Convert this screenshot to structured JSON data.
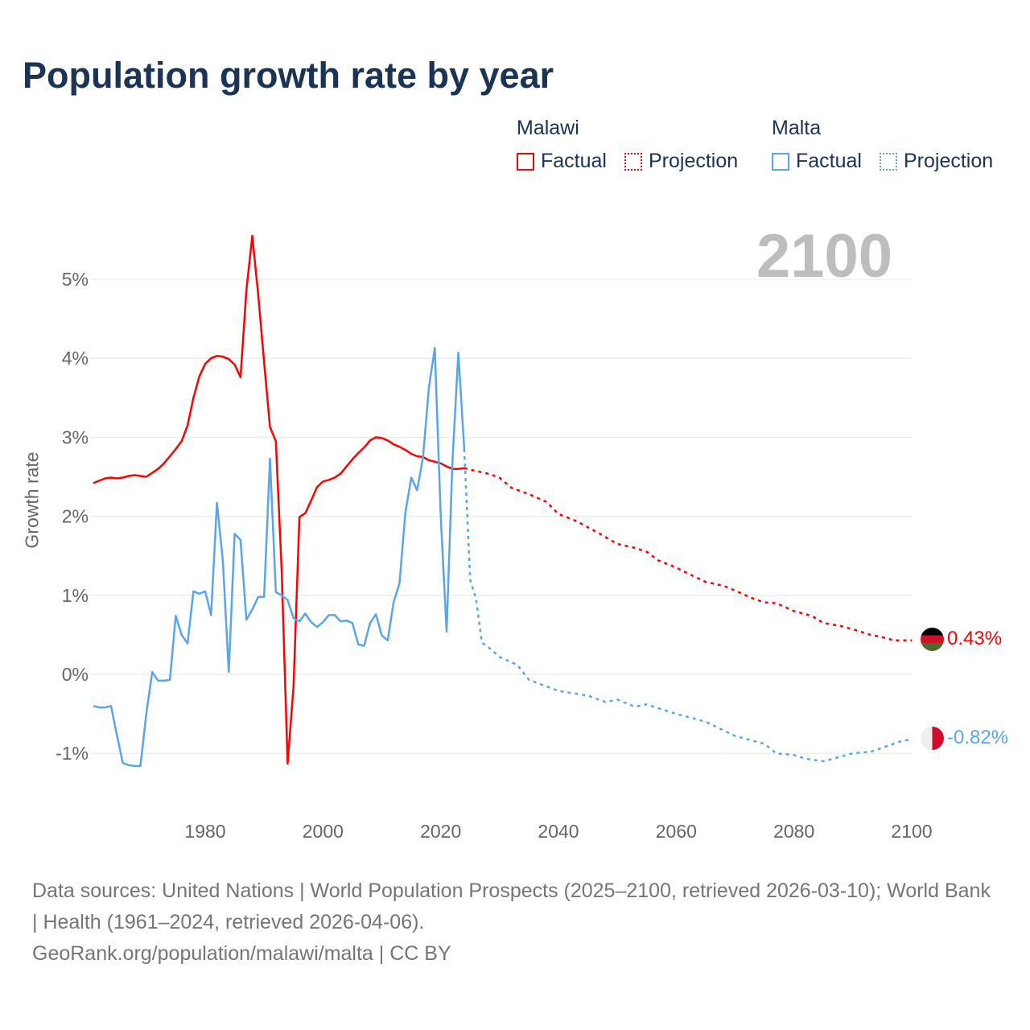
{
  "title": "Population growth rate by year",
  "legend": {
    "groups": [
      {
        "name": "Malawi",
        "factual": "Factual",
        "projection": "Projection",
        "color": "#ff0000"
      },
      {
        "name": "Malta",
        "factual": "Factual",
        "projection": "Projection",
        "color": "#5aa5ea"
      }
    ]
  },
  "current_year": "2100",
  "end_labels": {
    "malawi": "0.43%",
    "malta": "-0.82%"
  },
  "footer": {
    "sources": "Data sources: United Nations | World Population Prospects (2025–2100, retrieved 2026-03-10); World Bank | Health (1961–2024, retrieved 2026-04-06).",
    "credit": "GeoRank.org/population/malawi/malta | CC BY"
  },
  "chart_data": {
    "type": "line",
    "ylabel": "Growth rate",
    "xlim": [
      1961,
      2100
    ],
    "ylim": [
      -1.6,
      5.9
    ],
    "xticks": [
      {
        "v": 1980,
        "label": "1980"
      },
      {
        "v": 2000,
        "label": "2000"
      },
      {
        "v": 2020,
        "label": "2020"
      },
      {
        "v": 2040,
        "label": "2040"
      },
      {
        "v": 2060,
        "label": "2060"
      },
      {
        "v": 2080,
        "label": "2080"
      },
      {
        "v": 2100,
        "label": "2100"
      }
    ],
    "yticks": [
      {
        "v": -1,
        "label": "-1%"
      },
      {
        "v": 0,
        "label": "0%"
      },
      {
        "v": 1,
        "label": "1%"
      },
      {
        "v": 2,
        "label": "2%"
      },
      {
        "v": 3,
        "label": "3%"
      },
      {
        "v": 4,
        "label": "4%"
      },
      {
        "v": 5,
        "label": "5%"
      }
    ],
    "grid": true,
    "series": [
      {
        "name": "Malawi Factual",
        "color": "#ff0000",
        "dashed": false,
        "points": [
          [
            1961,
            2.42
          ],
          [
            1962,
            2.45
          ],
          [
            1963,
            2.48
          ],
          [
            1964,
            2.49
          ],
          [
            1965,
            2.48
          ],
          [
            1966,
            2.49
          ],
          [
            1967,
            2.51
          ],
          [
            1968,
            2.52
          ],
          [
            1969,
            2.51
          ],
          [
            1970,
            2.5
          ],
          [
            1971,
            2.55
          ],
          [
            1972,
            2.6
          ],
          [
            1973,
            2.67
          ],
          [
            1974,
            2.76
          ],
          [
            1975,
            2.85
          ],
          [
            1976,
            2.95
          ],
          [
            1977,
            3.15
          ],
          [
            1978,
            3.5
          ],
          [
            1979,
            3.77
          ],
          [
            1980,
            3.93
          ],
          [
            1981,
            4.0
          ],
          [
            1982,
            4.03
          ],
          [
            1983,
            4.02
          ],
          [
            1984,
            3.99
          ],
          [
            1985,
            3.92
          ],
          [
            1986,
            3.76
          ],
          [
            1987,
            4.86
          ],
          [
            1988,
            5.55
          ],
          [
            1989,
            4.8
          ],
          [
            1990,
            3.95
          ],
          [
            1991,
            3.13
          ],
          [
            1992,
            2.95
          ],
          [
            1993,
            1.3
          ],
          [
            1994,
            -1.13
          ],
          [
            1995,
            -0.15
          ],
          [
            1996,
            1.99
          ],
          [
            1997,
            2.04
          ],
          [
            1998,
            2.2
          ],
          [
            1999,
            2.37
          ],
          [
            2000,
            2.44
          ],
          [
            2001,
            2.46
          ],
          [
            2002,
            2.49
          ],
          [
            2003,
            2.54
          ],
          [
            2004,
            2.63
          ],
          [
            2005,
            2.72
          ],
          [
            2006,
            2.8
          ],
          [
            2007,
            2.87
          ],
          [
            2008,
            2.96
          ],
          [
            2009,
            3.0
          ],
          [
            2010,
            2.99
          ],
          [
            2011,
            2.96
          ],
          [
            2012,
            2.91
          ],
          [
            2013,
            2.88
          ],
          [
            2014,
            2.84
          ],
          [
            2015,
            2.79
          ],
          [
            2016,
            2.76
          ],
          [
            2017,
            2.75
          ],
          [
            2018,
            2.71
          ],
          [
            2019,
            2.69
          ],
          [
            2020,
            2.67
          ],
          [
            2021,
            2.63
          ],
          [
            2022,
            2.6
          ],
          [
            2023,
            2.6
          ],
          [
            2024,
            2.61
          ]
        ]
      },
      {
        "name": "Malawi Projection",
        "color": "#ff0000",
        "dashed": true,
        "points": [
          [
            2024,
            2.61
          ],
          [
            2025,
            2.59
          ],
          [
            2028,
            2.54
          ],
          [
            2030,
            2.49
          ],
          [
            2032,
            2.36
          ],
          [
            2035,
            2.28
          ],
          [
            2038,
            2.18
          ],
          [
            2040,
            2.03
          ],
          [
            2043,
            1.94
          ],
          [
            2045,
            1.86
          ],
          [
            2047,
            1.78
          ],
          [
            2050,
            1.65
          ],
          [
            2053,
            1.6
          ],
          [
            2055,
            1.55
          ],
          [
            2057,
            1.44
          ],
          [
            2060,
            1.35
          ],
          [
            2063,
            1.24
          ],
          [
            2065,
            1.17
          ],
          [
            2068,
            1.12
          ],
          [
            2070,
            1.06
          ],
          [
            2073,
            0.96
          ],
          [
            2075,
            0.91
          ],
          [
            2077,
            0.9
          ],
          [
            2080,
            0.8
          ],
          [
            2083,
            0.74
          ],
          [
            2085,
            0.65
          ],
          [
            2088,
            0.61
          ],
          [
            2090,
            0.57
          ],
          [
            2093,
            0.5
          ],
          [
            2095,
            0.47
          ],
          [
            2097,
            0.43
          ],
          [
            2100,
            0.43
          ]
        ]
      },
      {
        "name": "Malta Factual",
        "color": "#5aa5ea",
        "dashed": false,
        "points": [
          [
            1961,
            -0.4
          ],
          [
            1962,
            -0.42
          ],
          [
            1963,
            -0.42
          ],
          [
            1964,
            -0.4
          ],
          [
            1965,
            -0.77
          ],
          [
            1966,
            -1.12
          ],
          [
            1967,
            -1.15
          ],
          [
            1968,
            -1.16
          ],
          [
            1969,
            -1.16
          ],
          [
            1970,
            -0.5
          ],
          [
            1971,
            0.03
          ],
          [
            1972,
            -0.08
          ],
          [
            1973,
            -0.08
          ],
          [
            1974,
            -0.07
          ],
          [
            1975,
            0.74
          ],
          [
            1976,
            0.5
          ],
          [
            1977,
            0.39
          ],
          [
            1978,
            1.05
          ],
          [
            1979,
            1.02
          ],
          [
            1980,
            1.05
          ],
          [
            1981,
            0.75
          ],
          [
            1982,
            2.17
          ],
          [
            1983,
            1.44
          ],
          [
            1984,
            0.03
          ],
          [
            1985,
            1.78
          ],
          [
            1986,
            1.7
          ],
          [
            1987,
            0.69
          ],
          [
            1988,
            0.82
          ],
          [
            1989,
            0.98
          ],
          [
            1990,
            0.98
          ],
          [
            1991,
            2.73
          ],
          [
            1992,
            1.04
          ],
          [
            1993,
            1.0
          ],
          [
            1994,
            0.94
          ],
          [
            1995,
            0.71
          ],
          [
            1996,
            0.67
          ],
          [
            1997,
            0.77
          ],
          [
            1998,
            0.66
          ],
          [
            1999,
            0.6
          ],
          [
            2000,
            0.66
          ],
          [
            2001,
            0.75
          ],
          [
            2002,
            0.75
          ],
          [
            2003,
            0.67
          ],
          [
            2004,
            0.68
          ],
          [
            2005,
            0.65
          ],
          [
            2006,
            0.38
          ],
          [
            2007,
            0.36
          ],
          [
            2008,
            0.65
          ],
          [
            2009,
            0.76
          ],
          [
            2010,
            0.49
          ],
          [
            2011,
            0.43
          ],
          [
            2012,
            0.91
          ],
          [
            2013,
            1.15
          ],
          [
            2014,
            2.05
          ],
          [
            2015,
            2.49
          ],
          [
            2016,
            2.33
          ],
          [
            2017,
            2.75
          ],
          [
            2018,
            3.63
          ],
          [
            2019,
            4.13
          ],
          [
            2020,
            2.0
          ],
          [
            2021,
            0.54
          ],
          [
            2022,
            2.7
          ],
          [
            2023,
            4.07
          ],
          [
            2024,
            2.85
          ]
        ]
      },
      {
        "name": "Malta Projection",
        "color": "#5aa5ea",
        "dashed": true,
        "points": [
          [
            2024,
            2.85
          ],
          [
            2025,
            1.2
          ],
          [
            2026,
            0.95
          ],
          [
            2027,
            0.4
          ],
          [
            2028,
            0.35
          ],
          [
            2030,
            0.22
          ],
          [
            2033,
            0.12
          ],
          [
            2035,
            -0.07
          ],
          [
            2040,
            -0.21
          ],
          [
            2045,
            -0.27
          ],
          [
            2048,
            -0.35
          ],
          [
            2050,
            -0.32
          ],
          [
            2053,
            -0.41
          ],
          [
            2055,
            -0.38
          ],
          [
            2057,
            -0.43
          ],
          [
            2060,
            -0.5
          ],
          [
            2065,
            -0.6
          ],
          [
            2070,
            -0.78
          ],
          [
            2075,
            -0.88
          ],
          [
            2077,
            -1.0
          ],
          [
            2080,
            -1.02
          ],
          [
            2082,
            -1.07
          ],
          [
            2085,
            -1.1
          ],
          [
            2087,
            -1.06
          ],
          [
            2090,
            -1.0
          ],
          [
            2093,
            -0.98
          ],
          [
            2095,
            -0.93
          ],
          [
            2098,
            -0.85
          ],
          [
            2100,
            -0.82
          ]
        ]
      }
    ]
  }
}
